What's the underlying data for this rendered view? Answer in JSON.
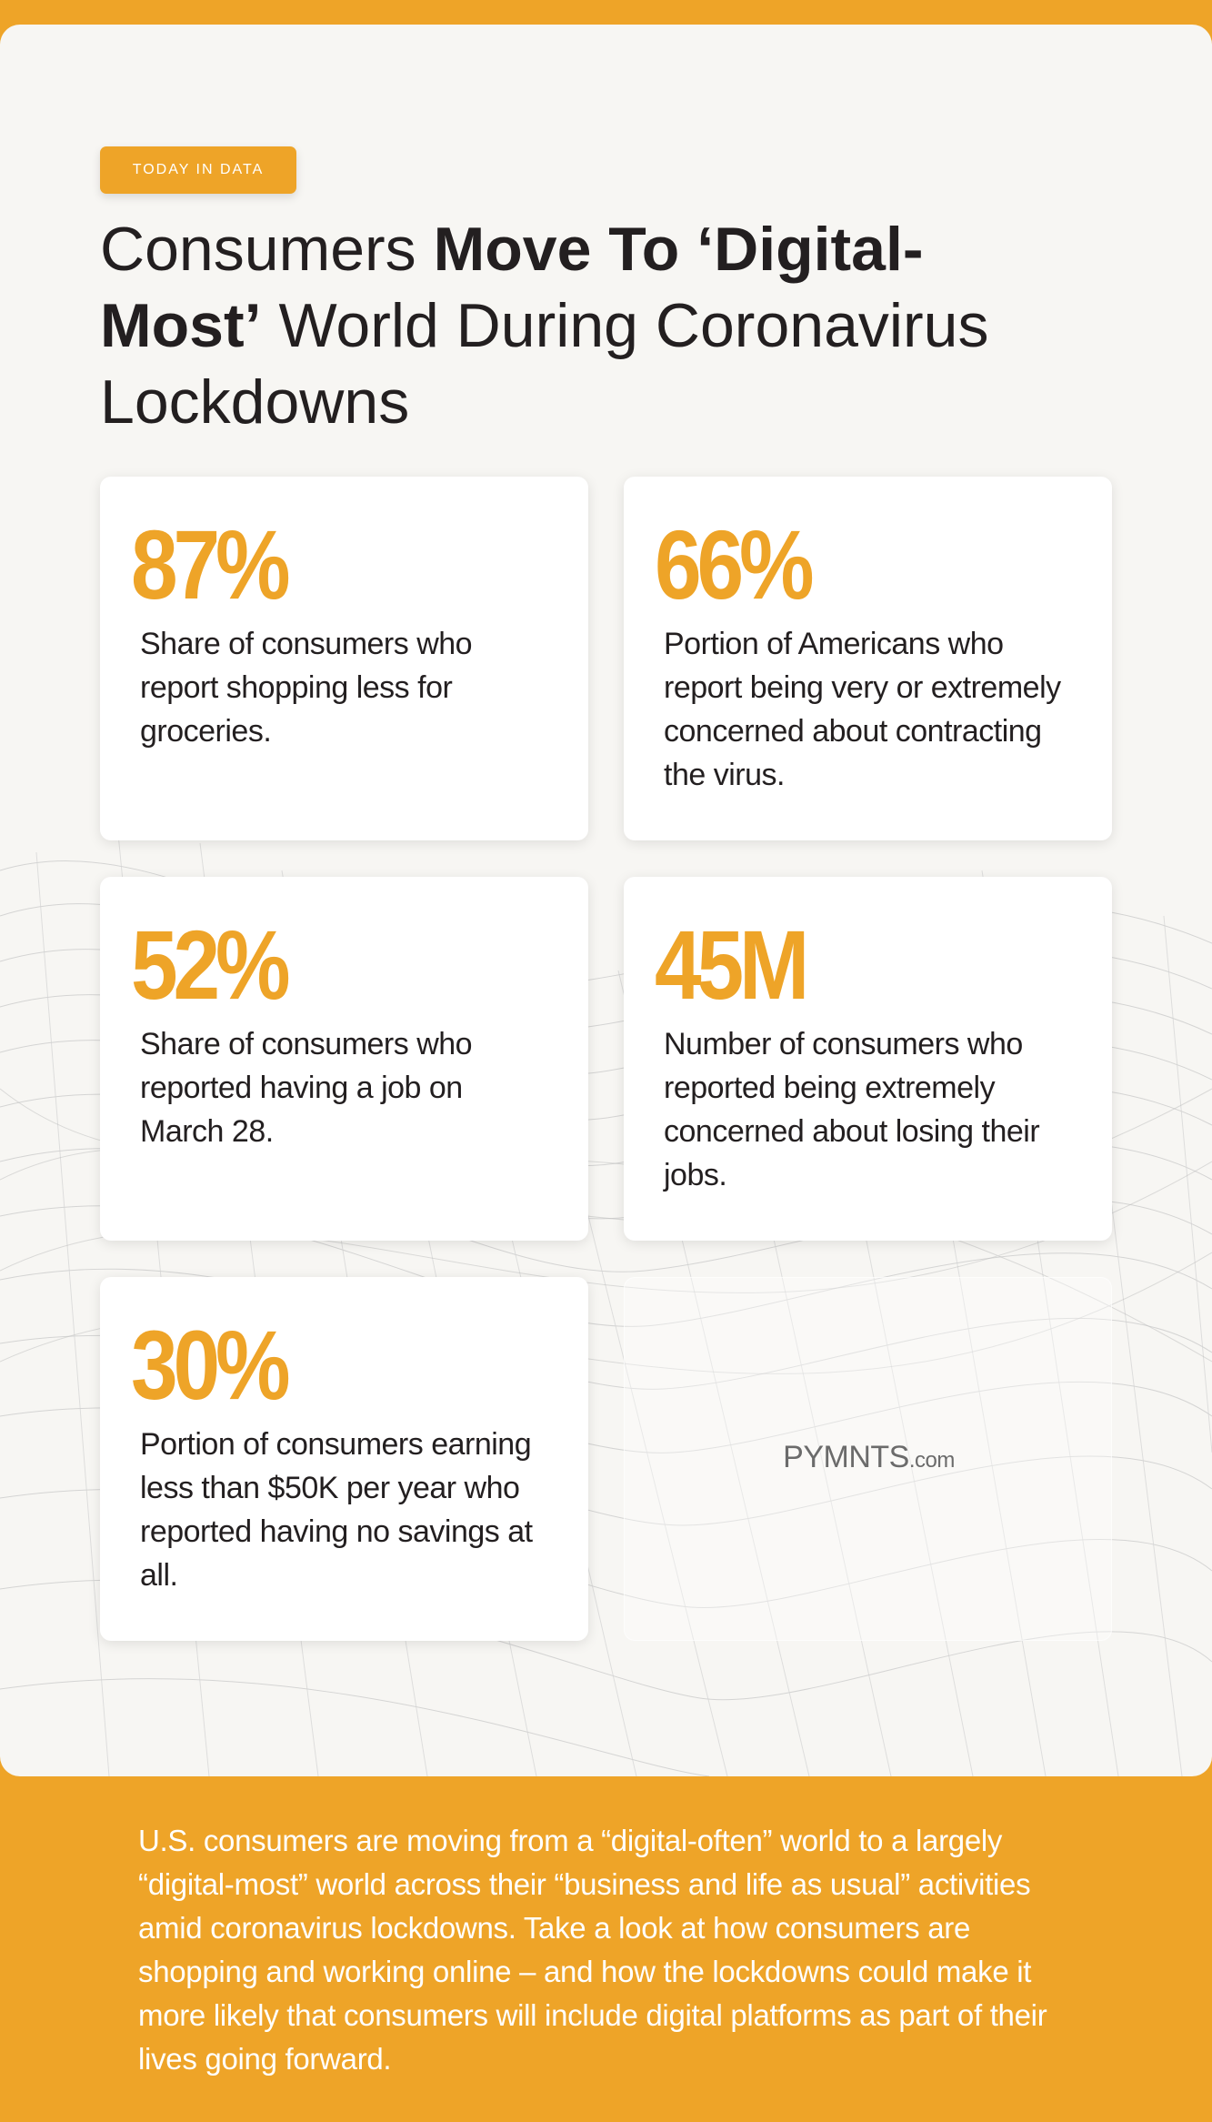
{
  "tag": "TODAY IN DATA",
  "title": {
    "part1": "Consumers ",
    "bold1": "Move To ‘Digital-",
    "bold2": "Most’",
    "part2": " World During Coronavirus",
    "part3": "Lockdowns"
  },
  "cards": [
    {
      "stat": "87%",
      "desc": "Share of consumers who report shopping less for groceries."
    },
    {
      "stat": "66%",
      "desc": "Portion of Americans who report being very or extremely concerned about contracting the virus."
    },
    {
      "stat": "52%",
      "desc": "Share of consumers who reported having a job on March 28."
    },
    {
      "stat": "45M",
      "desc": "Number of consumers who reported being extremely concerned about losing their jobs."
    },
    {
      "stat": "30%",
      "desc": "Portion of consumers earning less than $50K per year who reported having no savings at all."
    }
  ],
  "logo": {
    "brand": "PYMNTS",
    "suffix": ".com"
  },
  "footer": "U.S. consumers are moving from a “digital-often” world to a largely “digital-most” world across their “business and life as usual” activities amid coronavirus lockdowns. Take a look at how consumers are shopping and working online – and how the lockdowns could make it more likely that consumers will include digital platforms as part of their lives going forward.",
  "colors": {
    "accent": "#eea428",
    "panel": "#f7f6f3",
    "text": "#231f20"
  }
}
